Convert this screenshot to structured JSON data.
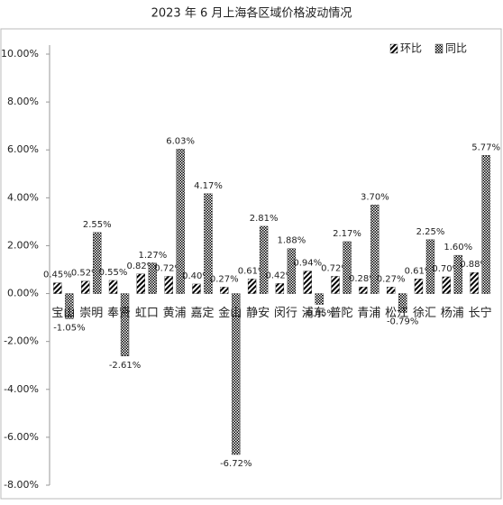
{
  "chart_data": {
    "type": "bar",
    "title": "2023 年 6 月上海各区域价格波动情况",
    "categories": [
      "宝山",
      "崇明",
      "奉贤",
      "虹口",
      "黄浦",
      "嘉定",
      "金山",
      "静安",
      "闵行",
      "浦东",
      "普陀",
      "青浦",
      "松江",
      "徐汇",
      "杨浦",
      "长宁"
    ],
    "series": [
      {
        "name": "环比",
        "color": "#000000",
        "pattern": "diagonal",
        "values": [
          0.45,
          0.52,
          0.55,
          0.82,
          0.72,
          0.4,
          0.27,
          0.61,
          0.42,
          0.94,
          0.72,
          0.28,
          0.27,
          0.61,
          0.7,
          0.88
        ],
        "value_labels": [
          "0.45%",
          "0.52%",
          "0.55%",
          "0.82%",
          "0.72%",
          "0.40%",
          "0.27%",
          "0.61%",
          "0.42%",
          "0.94%",
          "0.72%",
          "0.28%",
          "0.27%",
          "0.61%",
          "0.70%",
          "0.88%"
        ]
      },
      {
        "name": "同比",
        "color": "#000000",
        "pattern": "checker",
        "values": [
          -1.05,
          2.55,
          -2.61,
          1.27,
          6.03,
          4.17,
          -6.72,
          2.81,
          1.88,
          -0.45,
          2.17,
          3.7,
          -0.79,
          2.25,
          1.6,
          5.77
        ],
        "value_labels": [
          "-1.05%",
          "2.55%",
          "-2.61%",
          "1.27%",
          "6.03%",
          "4.17%",
          "-6.72%",
          "2.81%",
          "1.88%",
          "-0.45%",
          "2.17%",
          "3.70%",
          "-0.79%",
          "2.25%",
          "1.60%",
          "5.77%"
        ]
      }
    ],
    "ylim": [
      -8,
      10
    ],
    "yticks": [
      {
        "value": -8,
        "label": "-8.00%"
      },
      {
        "value": -6,
        "label": "-6.00%"
      },
      {
        "value": -4,
        "label": "-4.00%"
      },
      {
        "value": -2,
        "label": "-2.00%"
      },
      {
        "value": 0,
        "label": "0.00%"
      },
      {
        "value": 2,
        "label": "2.00%"
      },
      {
        "value": 4,
        "label": "4.00%"
      },
      {
        "value": 6,
        "label": "6.00%"
      },
      {
        "value": 8,
        "label": "8.00%"
      },
      {
        "value": 10,
        "label": "10.00%"
      }
    ],
    "grid": false,
    "legend": "top-right"
  }
}
